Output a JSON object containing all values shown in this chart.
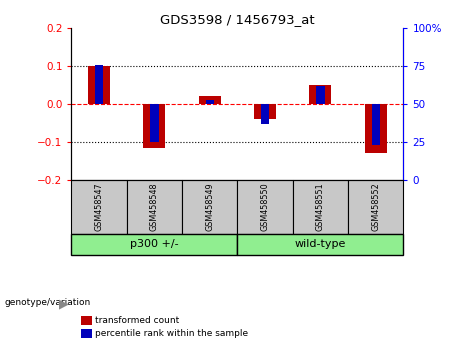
{
  "title": "GDS3598 / 1456793_at",
  "samples": [
    "GSM458547",
    "GSM458548",
    "GSM458549",
    "GSM458550",
    "GSM458551",
    "GSM458552"
  ],
  "red_values": [
    0.1,
    -0.115,
    0.022,
    -0.038,
    0.052,
    -0.128
  ],
  "blue_values_pct": [
    76,
    25,
    53,
    37,
    62,
    23
  ],
  "group_colors": [
    "#90EE90",
    "#90EE90"
  ],
  "ylim_left": [
    -0.2,
    0.2
  ],
  "ylim_right": [
    0,
    100
  ],
  "yticks_left": [
    -0.2,
    -0.1,
    0.0,
    0.1,
    0.2
  ],
  "yticks_right": [
    0,
    25,
    50,
    75,
    100
  ],
  "red_color": "#bb0000",
  "blue_color": "#0000bb",
  "bar_width": 0.4,
  "blue_bar_width": 0.15,
  "legend_red": "transformed count",
  "legend_blue": "percentile rank within the sample",
  "group_label_prefix": "genotype/variation",
  "group1_label": "p300 +/-",
  "group2_label": "wild-type",
  "bg_color": "#ffffff",
  "plot_bg": "#ffffff",
  "tick_box_color": "#c8c8c8"
}
